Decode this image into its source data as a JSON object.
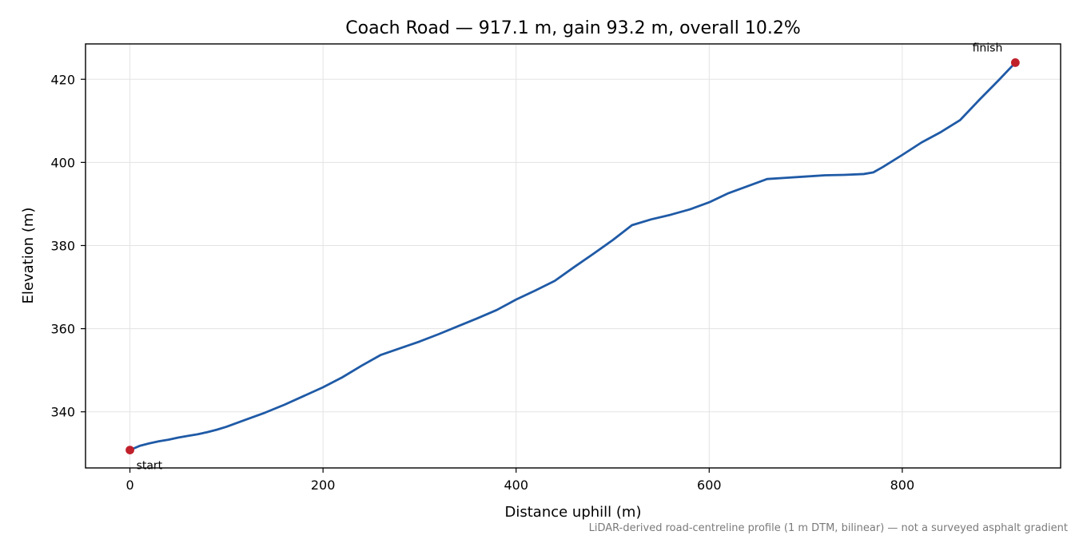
{
  "chart_data": {
    "type": "line",
    "title": "Coach Road — 917.1 m, gain 93.2 m, overall 10.2%",
    "xlabel": "Distance uphill (m)",
    "ylabel": "Elevation (m)",
    "xlim": [
      -46,
      964
    ],
    "ylim": [
      326.5,
      428.5
    ],
    "xticks": [
      0,
      200,
      400,
      600,
      800
    ],
    "yticks": [
      340,
      360,
      380,
      400,
      420
    ],
    "grid": true,
    "series": [
      {
        "color": "#1f5aa6",
        "x": [
          0,
          10,
          20,
          30,
          40,
          50,
          60,
          70,
          80,
          90,
          100,
          120,
          140,
          160,
          180,
          200,
          220,
          240,
          260,
          280,
          300,
          320,
          340,
          360,
          380,
          400,
          420,
          440,
          460,
          480,
          500,
          520,
          540,
          560,
          580,
          600,
          620,
          640,
          660,
          680,
          700,
          720,
          740,
          760,
          770,
          780,
          800,
          820,
          840,
          860,
          880,
          900,
          917.1
        ],
        "y": [
          330.8,
          331.8,
          332.4,
          332.9,
          333.3,
          333.8,
          334.2,
          334.6,
          335.1,
          335.7,
          336.4,
          338.1,
          339.8,
          341.7,
          343.8,
          345.9,
          348.3,
          351.1,
          353.7,
          355.3,
          356.9,
          358.7,
          360.6,
          362.5,
          364.5,
          367.0,
          369.2,
          371.5,
          374.8,
          378.0,
          381.3,
          384.9,
          386.3,
          387.4,
          388.7,
          390.4,
          392.6,
          394.3,
          396.0,
          396.3,
          396.6,
          396.9,
          397.0,
          397.2,
          397.6,
          398.9,
          401.8,
          404.8,
          407.3,
          410.2,
          415.1,
          419.8,
          424.0
        ]
      }
    ],
    "annotations": [
      {
        "label": "start",
        "x": 0,
        "y": 330.8,
        "color": "#c0202a"
      },
      {
        "label": "finish",
        "x": 917.1,
        "y": 424.0,
        "color": "#c0202a"
      }
    ],
    "footnote": "LiDAR-derived road-centreline profile (1 m DTM, bilinear) — not a surveyed asphalt gradient"
  }
}
